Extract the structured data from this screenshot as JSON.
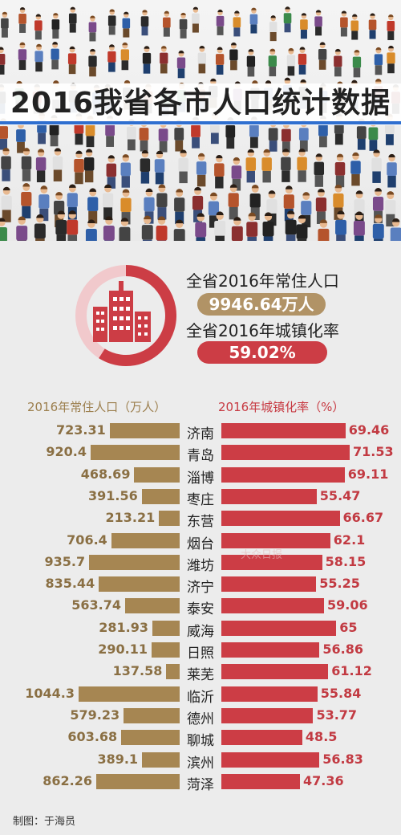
{
  "title": "2016我省各市人口统计数据",
  "summary": {
    "pop_label": "全省2016年常住人口",
    "pop_value": "9946.64万人",
    "urb_label": "全省2016年城镇化率",
    "urb_value": "59.02%",
    "urb_fraction": 0.5902
  },
  "chart_data": [
    {
      "type": "bar",
      "title": "2016年常住人口（万人）",
      "categories": [
        "济南",
        "青岛",
        "淄博",
        "枣庄",
        "东营",
        "烟台",
        "潍坊",
        "济宁",
        "泰安",
        "威海",
        "日照",
        "莱芜",
        "临沂",
        "德州",
        "聊城",
        "滨州",
        "菏泽"
      ],
      "values": [
        723.31,
        920.4,
        468.69,
        391.56,
        213.21,
        706.4,
        935.7,
        835.44,
        563.74,
        281.93,
        290.11,
        137.58,
        1044.3,
        579.23,
        603.68,
        389.1,
        862.26
      ],
      "labels": [
        "723.31",
        "920.4",
        "468.69",
        "391.56",
        "213.21",
        "706.4",
        "935.7",
        "835.44",
        "563.74",
        "281.93",
        "290.11",
        "137.58",
        "1044.3",
        "579.23",
        "603.68",
        "389.1",
        "862.26"
      ]
    },
    {
      "type": "bar",
      "title": "2016年城镇化率（%）",
      "categories": [
        "济南",
        "青岛",
        "淄博",
        "枣庄",
        "东营",
        "烟台",
        "潍坊",
        "济宁",
        "泰安",
        "威海",
        "日照",
        "莱芜",
        "临沂",
        "德州",
        "聊城",
        "滨州",
        "菏泽"
      ],
      "values": [
        69.46,
        71.53,
        69.11,
        55.47,
        66.67,
        62.1,
        58.15,
        55.25,
        59.06,
        65,
        56.86,
        61.12,
        55.84,
        53.77,
        48.5,
        56.83,
        47.36
      ],
      "labels": [
        "69.46",
        "71.53",
        "69.11",
        "55.47",
        "66.67",
        "62.1",
        "58.15",
        "55.25",
        "59.06",
        "65",
        "56.86",
        "61.12",
        "55.84",
        "53.77",
        "48.5",
        "56.83",
        "47.36"
      ]
    }
  ],
  "colors": {
    "gold": "#a68652",
    "red": "#cc3d45",
    "blue_rule": "#2f6fd0"
  },
  "watermark": "大众日报",
  "credit": "制图：于海员"
}
